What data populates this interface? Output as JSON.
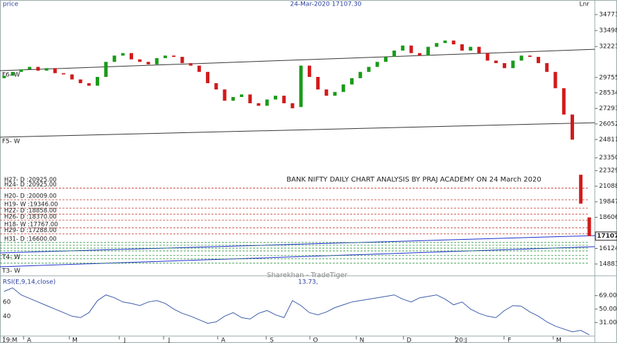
{
  "chart_data": {
    "type": "candlestick",
    "title": "24-Mar-2020 17107.30",
    "y_label": "price",
    "scale_label": "Lnr",
    "annotation": "BANK NIFTY DAILY CHART ANALYSIS BY PRAJ ACADEMY ON 24 March 2020",
    "watermark": "Sharekhan - TradeTiger",
    "last_price_label": "17107",
    "up_color": "#1a9a1a",
    "down_color": "#d11a1a",
    "open": [
      29700,
      29900,
      30200,
      30400,
      30600,
      30300,
      30500,
      30100,
      30000,
      29600,
      29300,
      29100,
      29800,
      31000,
      31500,
      31700,
      31200,
      31000,
      30800,
      31300,
      31500,
      31400,
      30900,
      30700,
      30200,
      29300,
      28800,
      27900,
      28200,
      28400,
      27700,
      27500,
      28000,
      28300,
      27700,
      27400,
      30700,
      29800,
      28800,
      28300,
      28600,
      29200,
      29700,
      30200,
      30600,
      31000,
      31400,
      31900,
      32300,
      31700,
      31500,
      32200,
      32500,
      32700,
      32400,
      31900,
      32200,
      31700,
      31100,
      30900,
      30500,
      31100,
      31500,
      31400,
      30900,
      30200,
      28900,
      26800,
      22000,
      18600
    ],
    "close": [
      29900,
      30200,
      30400,
      30600,
      30300,
      30500,
      30100,
      30000,
      29600,
      29300,
      29100,
      29800,
      31000,
      31500,
      31700,
      31200,
      31000,
      30800,
      31300,
      31500,
      31400,
      30900,
      30700,
      30200,
      29300,
      28800,
      27900,
      28200,
      28400,
      27700,
      27500,
      28000,
      28300,
      27700,
      27300,
      30700,
      29800,
      28800,
      28300,
      28600,
      29200,
      29700,
      30200,
      30600,
      31000,
      31400,
      31900,
      32300,
      31700,
      31500,
      32200,
      32500,
      32700,
      32400,
      31900,
      32200,
      31700,
      31100,
      30900,
      30500,
      31100,
      31500,
      31400,
      30900,
      30200,
      28900,
      26800,
      24800,
      19700,
      17107
    ],
    "x_labels": [
      "19:M",
      "A",
      "M",
      "J",
      "J",
      "A",
      "S",
      "O",
      "N",
      "D",
      "20:J",
      "F",
      "M"
    ],
    "ylim": [
      13944,
      35380
    ],
    "yticks": [
      {
        "value": 34773,
        "label": "34773."
      },
      {
        "value": 33498,
        "label": "33498."
      },
      {
        "value": 32223,
        "label": "32223."
      },
      {
        "value": 29755,
        "label": "29755."
      },
      {
        "value": 28534,
        "label": "28534."
      },
      {
        "value": 27293,
        "label": "27293."
      },
      {
        "value": 26052,
        "label": "26052."
      },
      {
        "value": 24811,
        "label": "24811."
      },
      {
        "value": 23350,
        "label": "23350."
      },
      {
        "value": 22329,
        "label": "22329."
      },
      {
        "value": 21088,
        "label": "21088."
      },
      {
        "value": 19847,
        "label": "19847."
      },
      {
        "value": 18606,
        "label": "18606."
      },
      {
        "value": 16124,
        "label": "16124."
      },
      {
        "value": 14883,
        "label": "14883."
      }
    ],
    "resistance_levels": [
      {
        "label": "H24- D :20925.00",
        "value": 20925
      },
      {
        "label": "H27- D :20925.00",
        "value": 20925
      },
      {
        "label": "H20- D :20009.00",
        "value": 20009
      },
      {
        "label": "H19- W :19346.00",
        "value": 19346
      },
      {
        "label": "H22- D :18858.00",
        "value": 18858
      },
      {
        "label": "H26- D :18370.00",
        "value": 18370
      },
      {
        "label": "H18- W :17767.00",
        "value": 17767
      },
      {
        "label": "H29- D :17288.00",
        "value": 17288
      }
    ],
    "support_levels": [
      {
        "label": "H31- D :16600.00",
        "value": 16600
      },
      {
        "label": null,
        "value": 16380
      },
      {
        "label": null,
        "value": 16150
      },
      {
        "label": null,
        "value": 15930
      },
      {
        "label": null,
        "value": 15560
      },
      {
        "label": null,
        "value": 15290
      },
      {
        "label": null,
        "value": 14950
      }
    ],
    "trendlines": [
      {
        "label": "F6- W",
        "start": 30300,
        "end": 32000,
        "color": "#333333"
      },
      {
        "label": "F5- W",
        "start": 24993,
        "end": 26150,
        "color": "#333333"
      },
      {
        "label": "T4- W",
        "start": 15767,
        "end": 17148,
        "color": "#1a2ccc"
      },
      {
        "label": "T3- W",
        "start": 14662,
        "end": 16264,
        "color": "#1a2ccc"
      }
    ],
    "rsi": {
      "title": "RSI(E,9,14,close)",
      "last_label": "13.73,",
      "color": "#3a5aa8",
      "values": [
        75,
        80,
        70,
        65,
        60,
        55,
        50,
        45,
        40,
        38,
        45,
        62,
        70,
        66,
        60,
        58,
        55,
        60,
        62,
        58,
        50,
        44,
        40,
        35,
        30,
        32,
        40,
        45,
        38,
        36,
        44,
        48,
        42,
        38,
        62,
        55,
        45,
        42,
        46,
        52,
        56,
        60,
        62,
        64,
        66,
        68,
        70,
        64,
        60,
        66,
        68,
        70,
        64,
        56,
        60,
        50,
        44,
        40,
        38,
        48,
        55,
        54,
        46,
        40,
        32,
        26,
        22,
        18,
        20,
        13.73
      ],
      "ylim": [
        12,
        95
      ],
      "yticks_left": [
        60,
        40
      ],
      "yticks_right": [
        {
          "value": 69,
          "label": "69.00"
        },
        {
          "value": 50,
          "label": "50.00"
        },
        {
          "value": 31,
          "label": "31.00"
        }
      ]
    }
  }
}
